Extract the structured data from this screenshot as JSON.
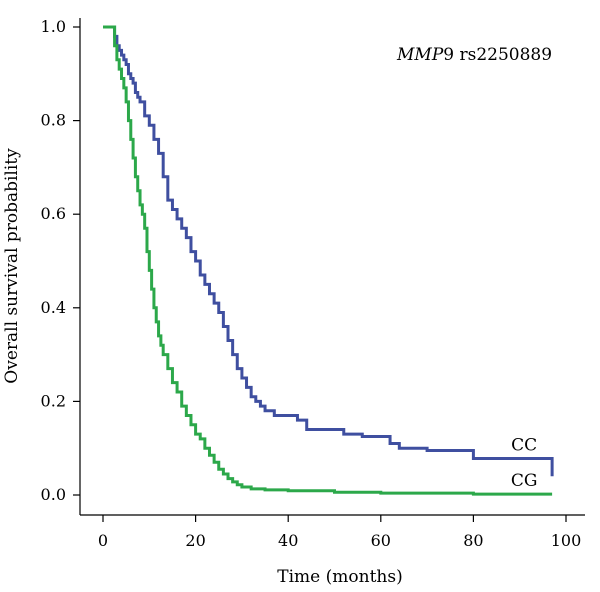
{
  "chart_data": {
    "type": "line",
    "title": "",
    "xlabel": "Time (months)",
    "ylabel": "Overall survival probability",
    "xlim": [
      0,
      100
    ],
    "ylim": [
      0,
      1
    ],
    "xticks": [
      0,
      20,
      40,
      60,
      80,
      100
    ],
    "yticks": [
      0.0,
      0.2,
      0.4,
      0.6,
      0.8,
      1.0
    ],
    "xtick_labels": [
      "0",
      "20",
      "40",
      "60",
      "80",
      "100"
    ],
    "ytick_labels": [
      "0.0",
      "0.2",
      "0.4",
      "0.6",
      "0.8",
      "1.0"
    ],
    "annotation": {
      "italic": "MMP",
      "rest": "9 rs2250889"
    },
    "grid": false,
    "series": [
      {
        "name": "CC",
        "color": "#3f4fa0",
        "step": true,
        "x": [
          0,
          2,
          2.5,
          3,
          3.5,
          4,
          4.5,
          5,
          5.5,
          6,
          6.5,
          7,
          7.5,
          8,
          9,
          10,
          11,
          12,
          13,
          14,
          15,
          16,
          17,
          18,
          19,
          20,
          21,
          22,
          23,
          24,
          25,
          26,
          27,
          28,
          29,
          30,
          31,
          32,
          33,
          34,
          35,
          37,
          39,
          42,
          44,
          50,
          52,
          56,
          62,
          64,
          65,
          70,
          80,
          97,
          97
        ],
        "y": [
          1.0,
          1.0,
          0.98,
          0.96,
          0.95,
          0.94,
          0.93,
          0.92,
          0.9,
          0.89,
          0.88,
          0.86,
          0.85,
          0.84,
          0.81,
          0.79,
          0.76,
          0.73,
          0.68,
          0.63,
          0.61,
          0.59,
          0.57,
          0.55,
          0.52,
          0.5,
          0.47,
          0.45,
          0.43,
          0.41,
          0.39,
          0.36,
          0.33,
          0.3,
          0.27,
          0.25,
          0.23,
          0.21,
          0.2,
          0.19,
          0.18,
          0.17,
          0.17,
          0.16,
          0.14,
          0.14,
          0.13,
          0.125,
          0.11,
          0.1,
          0.1,
          0.095,
          0.078,
          0.078,
          0.04
        ]
      },
      {
        "name": "CG",
        "color": "#2ca84a",
        "step": true,
        "x": [
          0,
          2,
          2.5,
          3,
          3.5,
          4,
          4.5,
          5,
          5.5,
          6,
          6.5,
          7,
          7.5,
          8,
          8.5,
          9,
          9.5,
          10,
          10.5,
          11,
          11.5,
          12,
          12.5,
          13,
          14,
          15,
          16,
          17,
          18,
          19,
          20,
          21,
          22,
          23,
          24,
          25,
          26,
          27,
          28,
          29,
          30,
          32,
          35,
          40,
          50,
          60,
          80,
          97
        ],
        "y": [
          1.0,
          1.0,
          0.96,
          0.93,
          0.91,
          0.89,
          0.87,
          0.84,
          0.8,
          0.76,
          0.72,
          0.68,
          0.65,
          0.62,
          0.6,
          0.57,
          0.52,
          0.48,
          0.44,
          0.4,
          0.37,
          0.34,
          0.32,
          0.3,
          0.27,
          0.24,
          0.22,
          0.19,
          0.17,
          0.15,
          0.13,
          0.12,
          0.1,
          0.085,
          0.07,
          0.055,
          0.045,
          0.035,
          0.028,
          0.022,
          0.017,
          0.013,
          0.011,
          0.009,
          0.006,
          0.004,
          0.002,
          0.002
        ]
      }
    ]
  }
}
